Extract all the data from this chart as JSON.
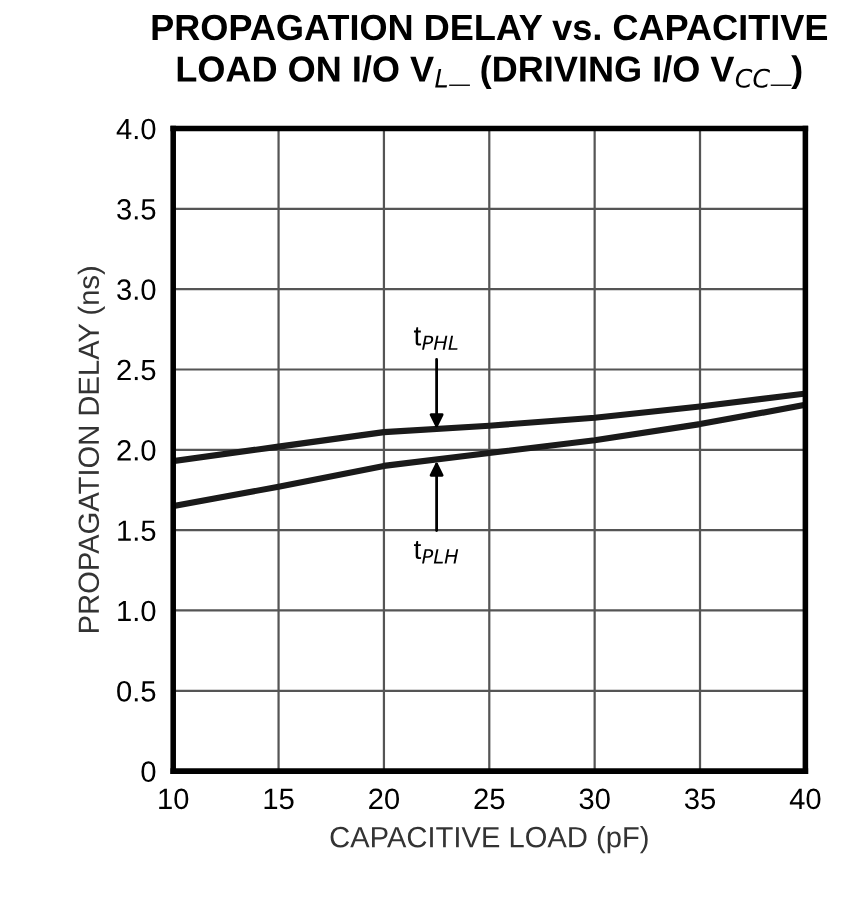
{
  "chart_data": {
    "type": "line",
    "title": "PROPAGATION DELAY vs. CAPACITIVE\nLOAD ON I/O V$_{L}$_ (DRIVING I/O V$_{CC}$_)",
    "xlabel": "CAPACITIVE LOAD (pF)",
    "ylabel": "PROPAGATION DELAY (ns)",
    "x": [
      10,
      15,
      20,
      25,
      30,
      35,
      40
    ],
    "series": [
      {
        "color": "#1a1a1a",
        "values": [
          1.93,
          2.02,
          2.11,
          2.15,
          2.2,
          2.27,
          2.35
        ]
      },
      {
        "color": "#1a1a1a",
        "values": [
          1.65,
          1.77,
          1.9,
          1.98,
          2.06,
          2.16,
          2.28
        ]
      }
    ],
    "annotations": [
      {
        "text": "t$_{PHL}$",
        "x": 22.5,
        "y": 2.13
      },
      {
        "text": "t$_{PLH}$",
        "x": 22.5,
        "y": 1.93
      }
    ],
    "xlim": [
      10,
      40
    ],
    "xticks": [
      10,
      15,
      20,
      25,
      30,
      35,
      40
    ],
    "ylim": [
      0,
      4.0
    ],
    "yticks": [
      {
        "value": 0,
        "label": "0"
      },
      {
        "value": 0.5,
        "label": "0.5"
      },
      {
        "value": 1.0,
        "label": "1.0"
      },
      {
        "value": 1.5,
        "label": "1.5"
      },
      {
        "value": 2.0,
        "label": "2.0"
      },
      {
        "value": 2.5,
        "label": "2.5"
      },
      {
        "value": 3.0,
        "label": "3.0"
      },
      {
        "value": 3.5,
        "label": "3.5"
      },
      {
        "value": 4.0,
        "label": "4.0"
      }
    ],
    "grid": true,
    "marker": "none",
    "line_style": "solid"
  }
}
